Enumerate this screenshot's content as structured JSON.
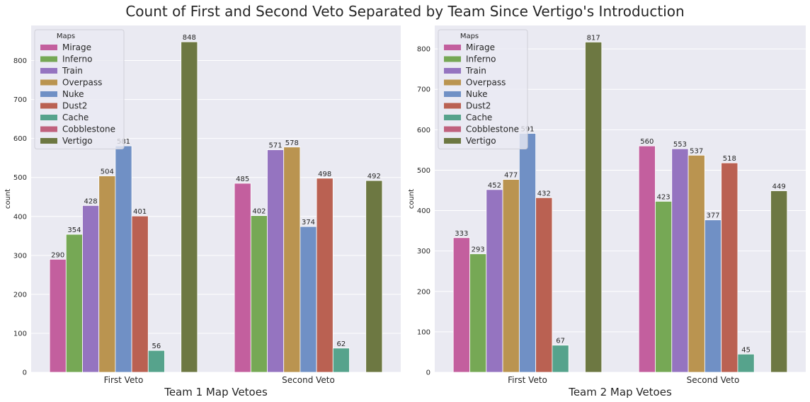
{
  "suptitle": "Count of First and Second Veto Separated by Team Since Vertigo's Introduction",
  "chart_data": [
    {
      "type": "bar",
      "xlabel": "Team 1 Map Vetoes",
      "ylabel": "count",
      "categories": [
        "First Veto",
        "Second Veto"
      ],
      "ylim": [
        0,
        890
      ],
      "yticks": [
        0,
        100,
        200,
        300,
        400,
        500,
        600,
        700,
        800
      ],
      "grid": true,
      "legend": {
        "title": "Maps",
        "placement": "top-left"
      },
      "series": [
        {
          "name": "Mirage",
          "color": "#c35f9e",
          "values": [
            290,
            485
          ]
        },
        {
          "name": "Inferno",
          "color": "#76a855",
          "values": [
            354,
            402
          ]
        },
        {
          "name": "Train",
          "color": "#9574c0",
          "values": [
            428,
            571
          ]
        },
        {
          "name": "Overpass",
          "color": "#ba9450",
          "values": [
            504,
            578
          ]
        },
        {
          "name": "Nuke",
          "color": "#7090c5",
          "values": [
            581,
            374
          ]
        },
        {
          "name": "Dust2",
          "color": "#ba6152",
          "values": [
            401,
            498
          ]
        },
        {
          "name": "Cache",
          "color": "#56a38c",
          "values": [
            56,
            62
          ]
        },
        {
          "name": "Cobblestone",
          "color": "#c0617d",
          "values": [
            null,
            null
          ]
        },
        {
          "name": "Vertigo",
          "color": "#6d7842",
          "values": [
            848,
            492
          ]
        }
      ]
    },
    {
      "type": "bar",
      "xlabel": "Team 2 Map Vetoes",
      "ylabel": "count",
      "categories": [
        "First Veto",
        "Second Veto"
      ],
      "ylim": [
        0,
        858
      ],
      "yticks": [
        0,
        100,
        200,
        300,
        400,
        500,
        600,
        700,
        800
      ],
      "grid": true,
      "legend": {
        "title": "Maps",
        "placement": "top-left"
      },
      "series": [
        {
          "name": "Mirage",
          "color": "#c35f9e",
          "values": [
            333,
            560
          ]
        },
        {
          "name": "Inferno",
          "color": "#76a855",
          "values": [
            293,
            423
          ]
        },
        {
          "name": "Train",
          "color": "#9574c0",
          "values": [
            452,
            553
          ]
        },
        {
          "name": "Overpass",
          "color": "#ba9450",
          "values": [
            477,
            537
          ]
        },
        {
          "name": "Nuke",
          "color": "#7090c5",
          "values": [
            591,
            377
          ]
        },
        {
          "name": "Dust2",
          "color": "#ba6152",
          "values": [
            432,
            518
          ]
        },
        {
          "name": "Cache",
          "color": "#56a38c",
          "values": [
            67,
            45
          ]
        },
        {
          "name": "Cobblestone",
          "color": "#c0617d",
          "values": [
            null,
            null
          ]
        },
        {
          "name": "Vertigo",
          "color": "#6d7842",
          "values": [
            817,
            449
          ]
        }
      ]
    }
  ]
}
